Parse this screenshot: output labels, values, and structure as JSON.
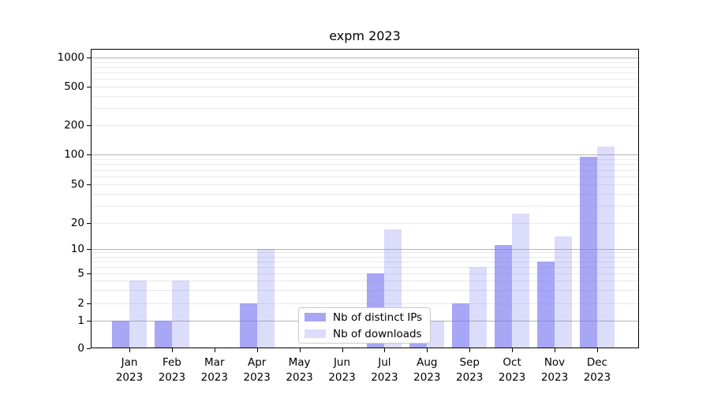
{
  "figure": {
    "title": "expm 2023"
  },
  "legend": {
    "items": [
      {
        "label": "Nb of distinct IPs",
        "color": "rgba(120,120,240,0.65)"
      },
      {
        "label": "Nb of downloads",
        "color": "rgba(120,120,240,0.26)"
      }
    ]
  },
  "axes": {
    "y_tick_labels": [
      "0",
      "1",
      "2",
      "5",
      "10",
      "20",
      "50",
      "100",
      "200",
      "500",
      "1000"
    ],
    "y_tick_values": [
      0,
      1,
      2,
      5,
      10,
      20,
      50,
      100,
      200,
      500,
      1000
    ],
    "y_major_grid_values": [
      1,
      10,
      100,
      1000
    ],
    "y_minor_grid_values": [
      2,
      3,
      4,
      5,
      6,
      7,
      8,
      9,
      20,
      30,
      40,
      50,
      60,
      70,
      80,
      90,
      200,
      300,
      400,
      500,
      600,
      700,
      800,
      900
    ],
    "x_tick_labels_line1": [
      "Jan",
      "Feb",
      "Mar",
      "Apr",
      "May",
      "Jun",
      "Jul",
      "Aug",
      "Sep",
      "Oct",
      "Nov",
      "Dec"
    ],
    "x_tick_labels_line2": "2023"
  },
  "colors": {
    "bar_ips": "rgba(120,120,240,0.65)",
    "bar_downloads": "rgba(120,120,240,0.26)",
    "grid_major": "#b3b3b3",
    "grid_minor": "#e9e9ef",
    "spine": "#000000"
  },
  "chart_data": {
    "type": "bar",
    "title": "expm 2023",
    "categories": [
      "Jan 2023",
      "Feb 2023",
      "Mar 2023",
      "Apr 2023",
      "May 2023",
      "Jun 2023",
      "Jul 2023",
      "Aug 2023",
      "Sep 2023",
      "Oct 2023",
      "Nov 2023",
      "Dec 2023"
    ],
    "series": [
      {
        "name": "Nb of distinct IPs",
        "values": [
          1,
          1,
          0,
          2,
          0,
          0,
          5,
          1,
          2,
          11,
          7,
          95
        ]
      },
      {
        "name": "Nb of downloads",
        "values": [
          4,
          4,
          0,
          10,
          0,
          0,
          17,
          1,
          6,
          25,
          14,
          120
        ]
      }
    ],
    "xlabel": "",
    "ylabel": "",
    "yscale": "symlog",
    "y_ticks": [
      0,
      1,
      2,
      5,
      10,
      20,
      50,
      100,
      200,
      500,
      1000
    ],
    "ylim": [
      0,
      1400
    ],
    "grid": true,
    "legend_position": "lower center inside"
  }
}
